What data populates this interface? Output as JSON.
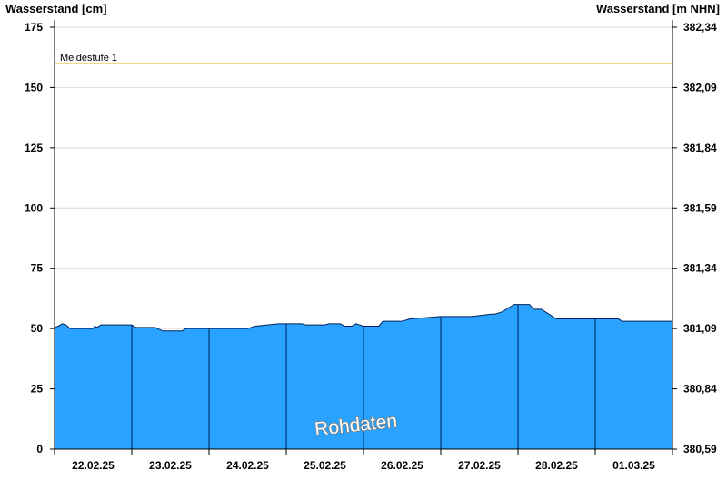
{
  "chart_data": {
    "type": "area",
    "left_axis_title": "Wasserstand [cm]",
    "right_axis_title": "Wasserstand [m NHN]",
    "y_left_range": [
      0,
      175
    ],
    "y_left_ticks": [
      "0",
      "25",
      "50",
      "75",
      "100",
      "125",
      "150",
      "175"
    ],
    "y_right_ticks": [
      "380,59",
      "380,84",
      "381,09",
      "381,34",
      "381,59",
      "381,84",
      "382,09",
      "382,34"
    ],
    "x_range_days": [
      0,
      8
    ],
    "date_labels": [
      "22.02.25",
      "23.02.25",
      "24.02.25",
      "25.02.25",
      "26.02.25",
      "27.02.25",
      "28.02.25",
      "01.03.25"
    ],
    "grid": true,
    "threshold": {
      "label": "Meldestufe 1",
      "value": 160,
      "color": "#e8c23a"
    },
    "fill_color": "#29a3ff",
    "line_color": "#00205e",
    "watermark": "Rohdaten",
    "series": [
      {
        "x": [
          0,
          0.05,
          0.1,
          0.15,
          0.2,
          0.5,
          0.52,
          0.55,
          0.6,
          0.9,
          1.0,
          1.05,
          1.3,
          1.4,
          1.65,
          1.7,
          2.0,
          2.25,
          2.5,
          2.6,
          2.9,
          3.0,
          3.2,
          3.25,
          3.5,
          3.55,
          3.7,
          3.75,
          3.85,
          3.9,
          4.0,
          4.2,
          4.25,
          4.5,
          4.6,
          5.0,
          5.4,
          5.65,
          5.7,
          5.8,
          5.95,
          6.0,
          6.15,
          6.2,
          6.3,
          6.35,
          6.5,
          6.8,
          7.0,
          7.1,
          7.3,
          7.35,
          7.4,
          7.45,
          7.6,
          8.0
        ],
        "y": [
          50.5,
          51,
          52,
          51.5,
          50,
          50,
          51,
          50.5,
          51.5,
          51.5,
          51.5,
          50.5,
          50.5,
          49,
          49,
          50,
          50,
          50,
          50,
          51,
          52,
          52,
          52,
          51.5,
          51.5,
          52,
          52,
          51,
          51,
          52,
          51,
          51,
          53,
          53,
          54,
          55,
          55,
          56,
          56,
          57,
          60,
          60,
          60,
          58,
          58,
          57,
          54,
          54,
          54,
          54,
          54,
          53,
          53,
          53,
          53,
          53
        ]
      }
    ]
  }
}
